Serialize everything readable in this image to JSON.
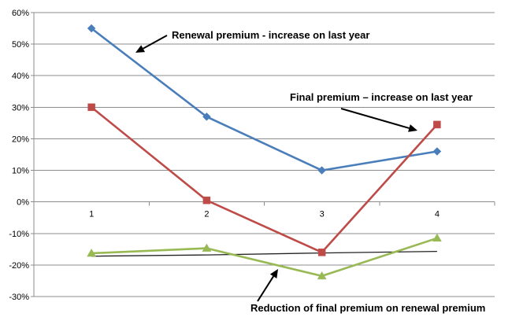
{
  "chart_data": {
    "type": "line",
    "categories": [
      "1",
      "2",
      "3",
      "4"
    ],
    "ylim": [
      -30,
      60
    ],
    "y_ticks": [
      -30,
      -20,
      -10,
      0,
      10,
      20,
      30,
      40,
      50,
      60
    ],
    "y_tick_labels": [
      "-30%",
      "-20%",
      "-10%",
      "0%",
      "10%",
      "20%",
      "30%",
      "40%",
      "50%",
      "60%"
    ],
    "y_unit": "%",
    "grid": "horizontal",
    "legend": "none",
    "series": [
      {
        "key": "renewal",
        "values": [
          55,
          27,
          10,
          16
        ],
        "color": "#4A7EBB",
        "marker": "diamond"
      },
      {
        "key": "final",
        "values": [
          30,
          0.5,
          -16,
          24.5
        ],
        "color": "#BE4B48",
        "marker": "square"
      },
      {
        "key": "reduction",
        "values": [
          -16.3,
          -14.7,
          -23.5,
          -11.5
        ],
        "color": "#98B954",
        "marker": "triangle"
      }
    ],
    "trendline": {
      "for_series": "reduction",
      "color": "#222222",
      "values": [
        -17.2,
        -16.8,
        -16.2,
        -15.7
      ]
    },
    "annotations": [
      {
        "key": "renewal",
        "text": "Renewal premium - increase on last year"
      },
      {
        "key": "final",
        "text": "Final premium – increase on last year"
      },
      {
        "key": "reduction",
        "text": "Reduction of final premium on renewal premium"
      }
    ]
  }
}
